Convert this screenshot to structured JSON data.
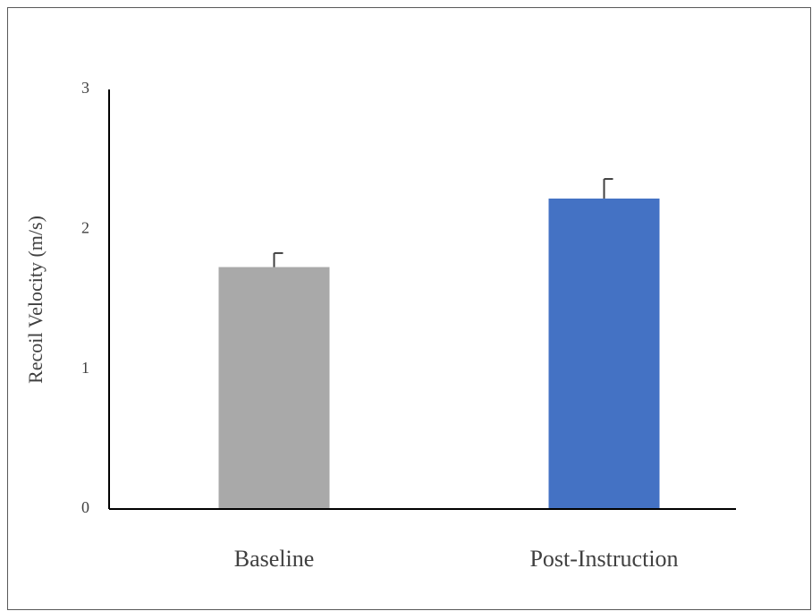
{
  "chart_data": {
    "type": "bar",
    "y_label": "Recoil Velocity (m/s)",
    "categories": [
      "Baseline",
      "Post-Instruction"
    ],
    "values": [
      1.73,
      2.22
    ],
    "errors": [
      0.1,
      0.14
    ],
    "colors": [
      "#a9a9a9",
      "#4472c4"
    ],
    "ylim": [
      0,
      3
    ],
    "yticks": [
      0,
      1,
      2,
      3
    ],
    "grid": false
  }
}
